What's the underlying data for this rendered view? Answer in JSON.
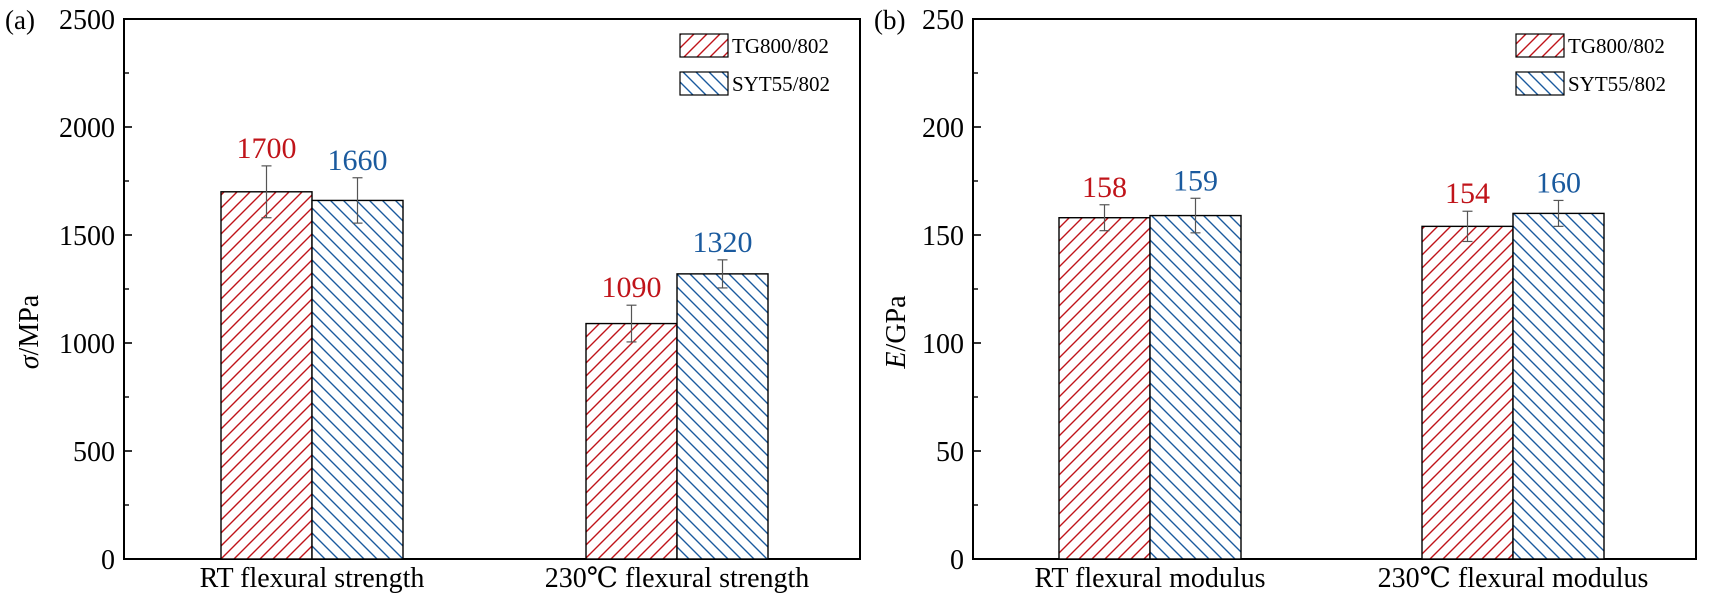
{
  "chart_data": [
    {
      "type": "bar",
      "panel_label": "(a)",
      "ylabel_symbol": "σ",
      "ylabel": "/MPa",
      "ylim": [
        0,
        2500
      ],
      "yticks": [
        0,
        500,
        1000,
        1500,
        2000,
        2500
      ],
      "categories": [
        "RT flexural strength",
        "230℃ flexural strength"
      ],
      "series": [
        {
          "name": "TG800/802",
          "values": [
            1700,
            1090
          ],
          "errors": [
            120,
            85
          ],
          "labels": [
            "1700",
            "1090"
          ],
          "color": "#c0141a",
          "hatch": "forward"
        },
        {
          "name": "SYT55/802",
          "values": [
            1660,
            1320
          ],
          "errors": [
            105,
            65
          ],
          "labels": [
            "1660",
            "1320"
          ],
          "color": "#1a5a9e",
          "hatch": "back"
        }
      ],
      "legend_position": "top-right",
      "grid": false
    },
    {
      "type": "bar",
      "panel_label": "(b)",
      "ylabel_symbol": "E",
      "ylabel": "/GPa",
      "ylim": [
        0,
        250
      ],
      "yticks": [
        0,
        50,
        100,
        150,
        200,
        250
      ],
      "categories": [
        "RT flexural modulus",
        "230℃ flexural modulus"
      ],
      "series": [
        {
          "name": "TG800/802",
          "values": [
            158,
            154
          ],
          "errors": [
            6,
            7
          ],
          "labels": [
            "158",
            "154"
          ],
          "color": "#c0141a",
          "hatch": "forward"
        },
        {
          "name": "SYT55/802",
          "values": [
            159,
            160
          ],
          "errors": [
            8,
            6
          ],
          "labels": [
            "159",
            "160"
          ],
          "color": "#1a5a9e",
          "hatch": "back"
        }
      ],
      "legend_position": "top-right",
      "grid": false
    }
  ]
}
